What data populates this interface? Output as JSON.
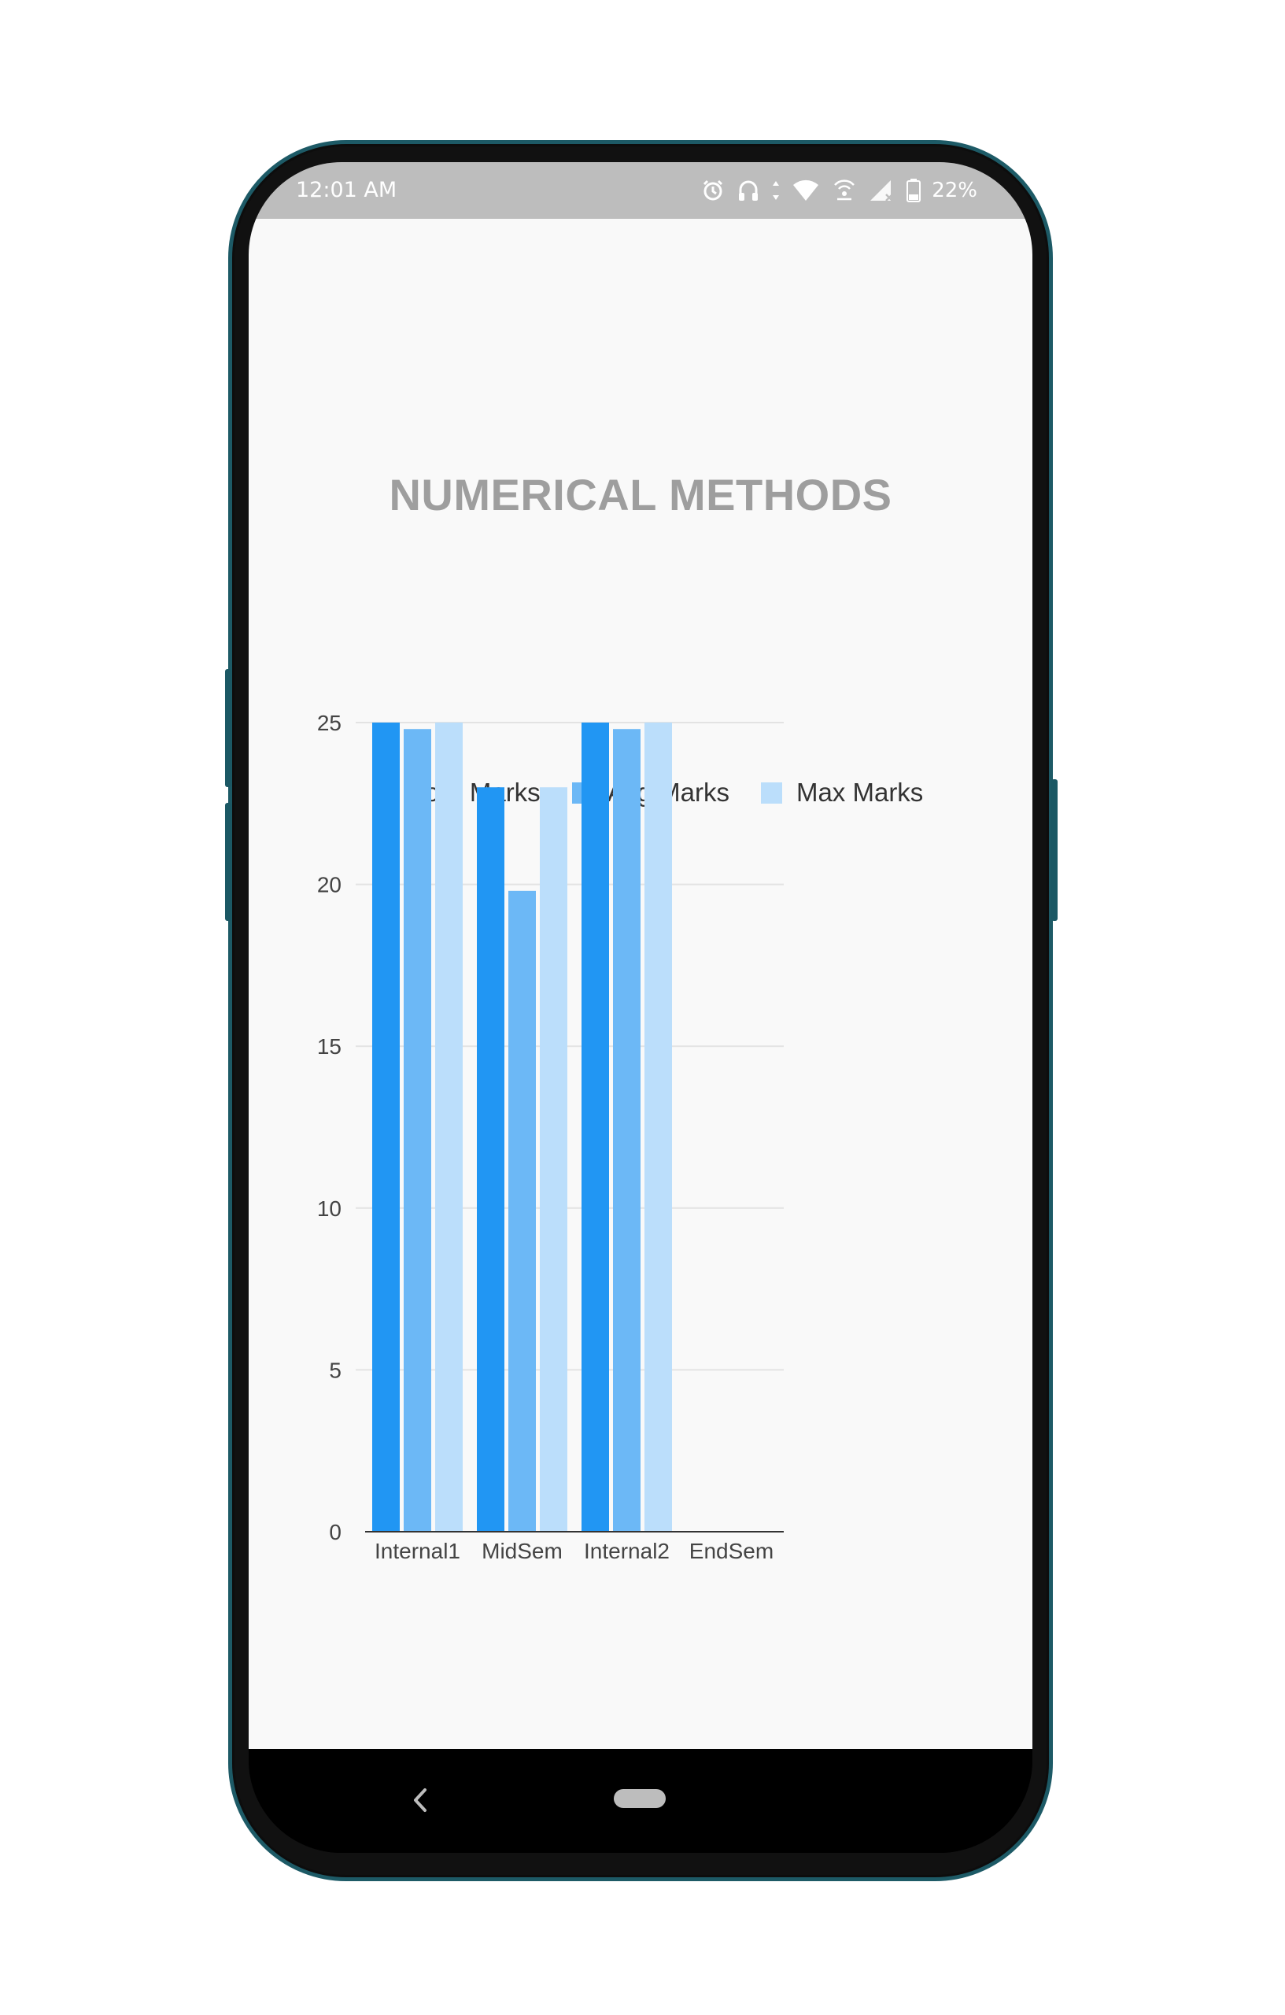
{
  "status_bar": {
    "time": "12:01 AM",
    "battery": "22%",
    "icons": [
      "alarm-icon",
      "headset-icon",
      "data-arrows-icon",
      "wifi-icon",
      "hotspot-icon",
      "signal-icon",
      "battery-icon"
    ]
  },
  "page": {
    "title": "NUMERICAL METHODS"
  },
  "navigation": {
    "icons": [
      "back-icon",
      "home-pill-icon"
    ]
  },
  "colors": {
    "your_marks": "#2196f3",
    "avg_marks": "#6cb8f6",
    "max_marks": "#bbdefb",
    "title": "#9e9e9e",
    "status_bar": "#bdbdbd",
    "app_background": "#f9f9f9"
  },
  "chart_data": {
    "type": "bar",
    "title": "",
    "xlabel": "",
    "ylabel": "",
    "categories": [
      "Internal1",
      "MidSem",
      "Internal2",
      "EndSem"
    ],
    "ylim": [
      0,
      25
    ],
    "yticks": [
      0,
      5,
      10,
      15,
      20,
      25
    ],
    "grid": true,
    "legend_position": "top",
    "series": [
      {
        "name": "Your Marks",
        "values": [
          25,
          23,
          25,
          0
        ]
      },
      {
        "name": "Avg Marks",
        "values": [
          24.8,
          19.8,
          24.8,
          0
        ]
      },
      {
        "name": "Max Marks",
        "values": [
          25,
          23,
          25,
          0
        ]
      }
    ]
  }
}
